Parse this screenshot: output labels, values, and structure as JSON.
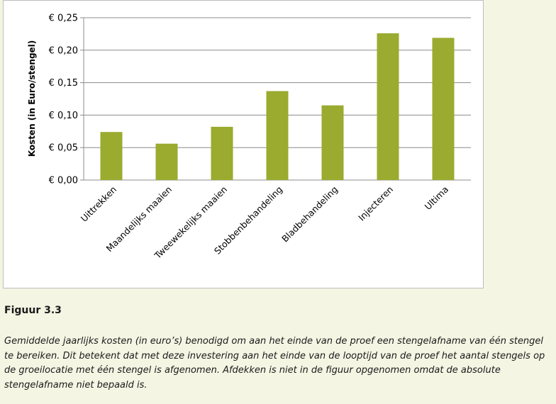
{
  "chart_data": {
    "type": "bar",
    "title": "",
    "xlabel": "",
    "ylabel": "Kosten (in Euro/stengel)",
    "categories": [
      "Uittrekken",
      "Maandelijks maaien",
      "Tweewekelijks maaien",
      "Stobbenbehandeling",
      "Bladbehandeling",
      "Injecteren",
      "Ultima"
    ],
    "values": [
      0.074,
      0.056,
      0.082,
      0.137,
      0.115,
      0.226,
      0.219
    ],
    "ylim": [
      0,
      0.25
    ],
    "yticks": [
      0,
      0.05,
      0.1,
      0.15,
      0.2,
      0.25
    ],
    "ytick_labels": [
      "€ 0,00",
      "€ 0,05",
      "€ 0,10",
      "€ 0,15",
      "€ 0,20",
      "€ 0,25"
    ],
    "grid": true,
    "legend": "none",
    "bar_color": "#9aab2f",
    "grid_color": "#8c8c8c"
  },
  "figure": {
    "label": "Figuur 3.3",
    "caption": "Gemiddelde jaarlijks kosten (in euro’s) benodigd om aan het einde van de proef een stengelafname van één stengel te bereiken. Dit betekent dat met deze investering aan het einde van de looptijd van de proef het aantal stengels op de groeilocatie met één stengel is afgenomen. Afdekken is niet in de figuur opgenomen omdat de absolute stengelafname niet bepaald is."
  }
}
